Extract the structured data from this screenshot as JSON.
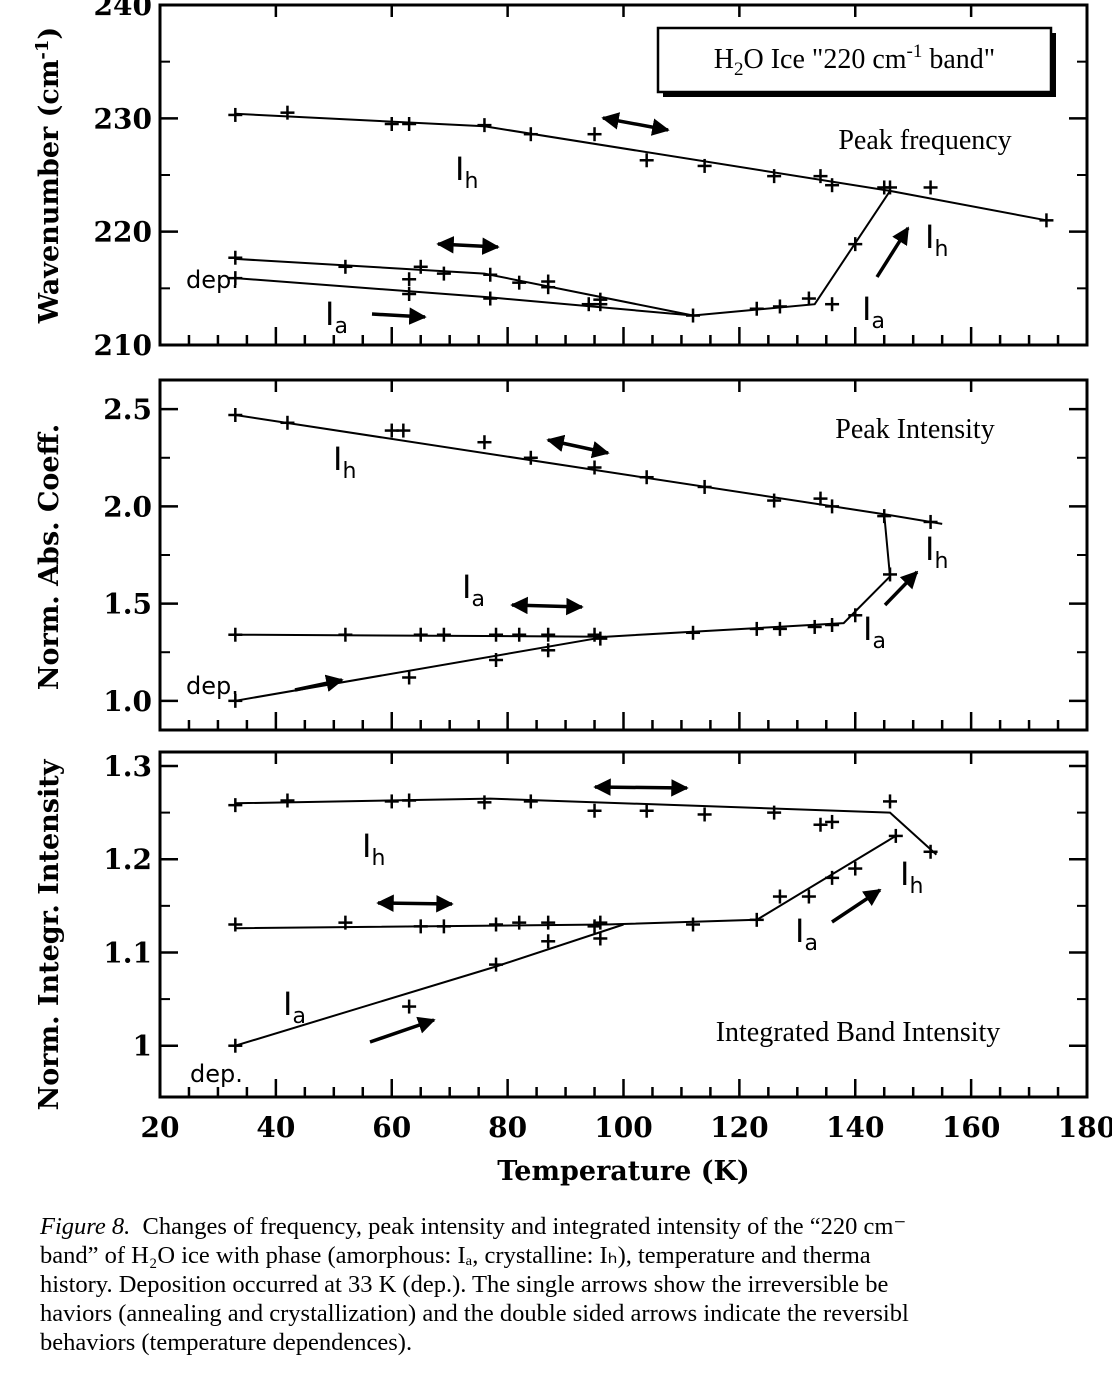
{
  "chart_data": [
    {
      "type": "line",
      "title": "H2O Ice \"220 cm-1 band\"",
      "title_parts": {
        "pre": "H",
        "sub": "2",
        "mid": "O Ice  \"220 cm",
        "sup": "-1",
        "post": " band\""
      },
      "annotation": "Peak frequency",
      "ylabel": "Wavenumber  (cm-1)",
      "ylabel_parts": {
        "main": "Wavenumber  (cm",
        "sup": "-1",
        "end": ")"
      },
      "xlim": [
        20,
        180
      ],
      "ylim": [
        210,
        240
      ],
      "yticks": [
        "210",
        "220",
        "230",
        "240"
      ],
      "dep_label": "dep.",
      "series": [
        {
          "phase": "Ih",
          "line": [
            [
              33,
              230.4
            ],
            [
              76,
              229.3
            ],
            [
              146,
              223.6
            ],
            [
              173,
              221
            ]
          ],
          "points": [
            [
              33,
              230.3
            ],
            [
              42,
              230.5
            ],
            [
              60,
              229.5
            ],
            [
              63,
              229.5
            ],
            [
              76,
              229.4
            ],
            [
              84,
              228.6
            ],
            [
              95,
              228.6
            ],
            [
              104,
              226.3
            ],
            [
              114,
              225.8
            ],
            [
              126,
              224.9
            ],
            [
              134,
              224.9
            ],
            [
              136,
              224.1
            ],
            [
              145,
              223.9
            ],
            [
              146,
              223.9
            ],
            [
              153,
              223.9
            ],
            [
              173,
              221
            ]
          ]
        },
        {
          "phase": "Ia-annealed",
          "line": [
            [
              33,
              217.6
            ],
            [
              76,
              216.3
            ],
            [
              112,
              212.6
            ]
          ],
          "points": [
            [
              33,
              217.7
            ],
            [
              52,
              216.9
            ],
            [
              63,
              215.8
            ],
            [
              65,
              216.9
            ],
            [
              69,
              216.3
            ],
            [
              77,
              216.2
            ],
            [
              82,
              215.5
            ],
            [
              87,
              215.6
            ],
            [
              87,
              215.1
            ],
            [
              96,
              214
            ]
          ]
        },
        {
          "phase": "Ia-deposited",
          "line": [
            [
              33,
              215.9
            ],
            [
              77,
              214.2
            ],
            [
              112,
              212.6
            ],
            [
              133,
              213.6
            ],
            [
              146,
              223.6
            ]
          ],
          "points": [
            [
              33,
              215.9
            ],
            [
              63,
              214.5
            ],
            [
              77,
              214.1
            ],
            [
              94,
              213.6
            ],
            [
              96,
              213.6
            ],
            [
              112,
              212.6
            ],
            [
              123,
              213.2
            ],
            [
              127,
              213.4
            ],
            [
              132,
              214.1
            ],
            [
              136,
              213.6
            ],
            [
              140,
              218.9
            ]
          ]
        }
      ],
      "labels": {
        "ih": "I",
        "ih_sub": "h",
        "ia": "I",
        "ia_sub": "a"
      }
    },
    {
      "type": "line",
      "annotation": "Peak  Intensity",
      "ylabel": "Norm. Abs. Coeff.",
      "xlim": [
        20,
        180
      ],
      "ylim": [
        0.85,
        2.65
      ],
      "yticks": [
        "1.0",
        "1.5",
        "2.0",
        "2.5"
      ],
      "dep_label": "dep.",
      "series": [
        {
          "phase": "Ih",
          "line": [
            [
              33,
              2.47
            ],
            [
              145,
              1.96
            ],
            [
              146,
              1.64
            ]
          ],
          "points": [
            [
              33,
              2.47
            ],
            [
              42,
              2.43
            ],
            [
              60,
              2.39
            ],
            [
              62,
              2.39
            ],
            [
              76,
              2.33
            ],
            [
              84,
              2.25
            ],
            [
              95,
              2.2
            ],
            [
              104,
              2.15
            ],
            [
              114,
              2.1
            ],
            [
              126,
              2.03
            ],
            [
              134,
              2.04
            ],
            [
              136,
              2.0
            ],
            [
              145,
              1.95
            ],
            [
              153,
              1.92
            ]
          ],
          "tail": [
            [
              145,
              1.96
            ],
            [
              155,
              1.91
            ]
          ]
        },
        {
          "phase": "Ia-annealed",
          "line": [
            [
              33,
              1.34
            ],
            [
              97,
              1.33
            ],
            [
              138,
              1.4
            ],
            [
              146,
              1.64
            ]
          ],
          "points": [
            [
              33,
              1.34
            ],
            [
              52,
              1.34
            ],
            [
              65,
              1.34
            ],
            [
              69,
              1.34
            ],
            [
              78,
              1.34
            ],
            [
              82,
              1.34
            ],
            [
              87,
              1.34
            ],
            [
              95,
              1.34
            ],
            [
              112,
              1.35
            ],
            [
              123,
              1.37
            ],
            [
              127,
              1.37
            ],
            [
              133,
              1.38
            ],
            [
              136,
              1.39
            ],
            [
              140,
              1.44
            ],
            [
              146,
              1.65
            ]
          ]
        },
        {
          "phase": "Ia-deposited",
          "line": [
            [
              33,
              1.0
            ],
            [
              97,
              1.33
            ]
          ],
          "points": [
            [
              33,
              1.0
            ],
            [
              63,
              1.12
            ],
            [
              78,
              1.21
            ],
            [
              87,
              1.26
            ],
            [
              96,
              1.32
            ]
          ]
        }
      ],
      "labels": {
        "ih": "I",
        "ih_sub": "h",
        "ia": "I",
        "ia_sub": "a"
      }
    },
    {
      "type": "line",
      "annotation": "Integrated  Band Intensity",
      "ylabel": "Norm. Integr. Intensity",
      "xlabel": "Temperature (K)",
      "xlim": [
        20,
        180
      ],
      "xticks": [
        "20",
        "40",
        "60",
        "80",
        "100",
        "120",
        "140",
        "160",
        "180"
      ],
      "ylim": [
        0.945,
        1.315
      ],
      "yticks": [
        "1",
        "1.1",
        "1.2",
        "1.3"
      ],
      "dep_label": "dep.",
      "series": [
        {
          "phase": "Ih",
          "line": [
            [
              33,
              1.26
            ],
            [
              77,
              1.265
            ],
            [
              146,
              1.25
            ],
            [
              154,
              1.205
            ]
          ],
          "points": [
            [
              33,
              1.258
            ],
            [
              42,
              1.263
            ],
            [
              60,
              1.262
            ],
            [
              63,
              1.263
            ],
            [
              76,
              1.261
            ],
            [
              84,
              1.262
            ],
            [
              95,
              1.252
            ],
            [
              104,
              1.252
            ],
            [
              114,
              1.248
            ],
            [
              126,
              1.25
            ],
            [
              134,
              1.237
            ],
            [
              136,
              1.24
            ],
            [
              146,
              1.262
            ],
            [
              153,
              1.208
            ]
          ]
        },
        {
          "phase": "Ia-annealed",
          "line": [
            [
              33,
              1.126
            ],
            [
              97,
              1.13
            ],
            [
              123,
              1.135
            ],
            [
              147,
              1.225
            ]
          ],
          "points": [
            [
              33,
              1.13
            ],
            [
              52,
              1.132
            ],
            [
              65,
              1.128
            ],
            [
              69,
              1.128
            ],
            [
              78,
              1.13
            ],
            [
              82,
              1.132
            ],
            [
              87,
              1.132
            ],
            [
              95,
              1.128
            ],
            [
              96,
              1.132
            ],
            [
              112,
              1.13
            ],
            [
              123,
              1.135
            ],
            [
              127,
              1.16
            ],
            [
              132,
              1.16
            ],
            [
              136,
              1.18
            ],
            [
              140,
              1.19
            ],
            [
              147,
              1.225
            ]
          ]
        },
        {
          "phase": "Ia-deposited",
          "line": [
            [
              33,
              1.0
            ],
            [
              78,
              1.085
            ],
            [
              100,
              1.13
            ]
          ],
          "points": [
            [
              33,
              1.0
            ],
            [
              63,
              1.042
            ],
            [
              78,
              1.087
            ],
            [
              87,
              1.112
            ],
            [
              96,
              1.115
            ]
          ]
        }
      ],
      "labels": {
        "ih": "I",
        "ih_sub": "h",
        "ia": "I",
        "ia_sub": "a"
      }
    }
  ],
  "caption": {
    "lead": "Figure 8.",
    "lines": [
      "Changes of frequency, peak intensity and integrated intensity of the “220 cm⁻",
      "band” of H₂O ice with phase (amorphous: Iₐ, crystalline: Iₕ), temperature and therma",
      "history. Deposition occurred at 33 K (dep.). The single arrows show the irreversible be",
      "haviors (annealing and crystallization) and the double sided arrows indicate the reversibl",
      "behaviors (temperature dependences)."
    ]
  }
}
